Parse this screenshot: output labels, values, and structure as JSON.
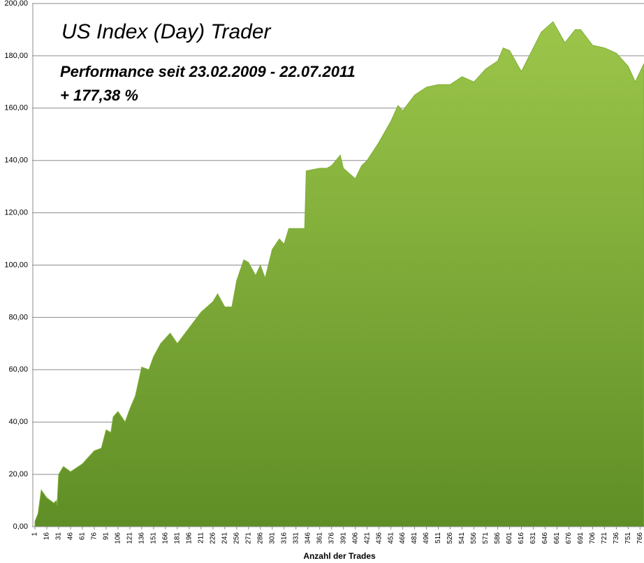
{
  "chart_data": {
    "type": "area",
    "title": "US Index (Day) Trader",
    "annotations": [
      "Performance  seit  23.02.2009 - 22.07.2011",
      "+ 177,38  %"
    ],
    "xlabel": "Anzahl der Trades",
    "x": [
      1,
      5,
      9,
      16,
      25,
      28,
      29,
      31,
      37,
      46,
      61,
      76,
      85,
      91,
      97,
      100,
      106,
      115,
      121,
      128,
      136,
      145,
      151,
      160,
      166,
      172,
      181,
      196,
      211,
      226,
      232,
      241,
      250,
      256,
      265,
      271,
      280,
      286,
      292,
      301,
      310,
      316,
      322,
      342,
      344,
      361,
      370,
      376,
      387,
      391,
      406,
      414,
      421,
      436,
      451,
      460,
      466,
      481,
      496,
      511,
      526,
      541,
      556,
      571,
      586,
      593,
      601,
      616,
      631,
      641,
      656,
      671,
      684,
      691,
      706,
      721,
      736,
      751,
      760,
      763,
      771
    ],
    "values": [
      2,
      5,
      14,
      11,
      9,
      10,
      8,
      20,
      23,
      21,
      24,
      29,
      30,
      37,
      36,
      42,
      44,
      40,
      45,
      50,
      61,
      60,
      65,
      70,
      72,
      74,
      70,
      76,
      82,
      86,
      89,
      84,
      84,
      94,
      102,
      101,
      96,
      100,
      95,
      106,
      110,
      108,
      114,
      114,
      136,
      137,
      137,
      138,
      142,
      137,
      133,
      138,
      140,
      147,
      155,
      161,
      159,
      165,
      168,
      169,
      169,
      172,
      170,
      175,
      178,
      183,
      182,
      174,
      183,
      189,
      193,
      185,
      190,
      190,
      184,
      183,
      181,
      176,
      170,
      172,
      177
    ],
    "color": "#7fad36",
    "xlim": [
      1,
      771
    ],
    "ylim": [
      0,
      200
    ],
    "xticks": [
      1,
      16,
      31,
      46,
      61,
      76,
      91,
      106,
      121,
      136,
      151,
      166,
      181,
      196,
      211,
      226,
      241,
      256,
      271,
      286,
      301,
      316,
      331,
      346,
      361,
      376,
      391,
      406,
      421,
      436,
      451,
      466,
      481,
      496,
      511,
      526,
      541,
      556,
      571,
      586,
      601,
      616,
      631,
      646,
      661,
      676,
      691,
      706,
      721,
      736,
      751,
      766
    ],
    "yticks": [
      {
        "value": 0,
        "label": "0,00"
      },
      {
        "value": 20,
        "label": "20,00"
      },
      {
        "value": 40,
        "label": "40,00"
      },
      {
        "value": 60,
        "label": "60,00"
      },
      {
        "value": 80,
        "label": "80,00"
      },
      {
        "value": 100,
        "label": "100,00"
      },
      {
        "value": 120,
        "label": "120,00"
      },
      {
        "value": 140,
        "label": "140,00"
      },
      {
        "value": 160,
        "label": "160,00"
      },
      {
        "value": 180,
        "label": "180,00"
      },
      {
        "value": 200,
        "label": "200,00"
      }
    ],
    "grid": true
  }
}
